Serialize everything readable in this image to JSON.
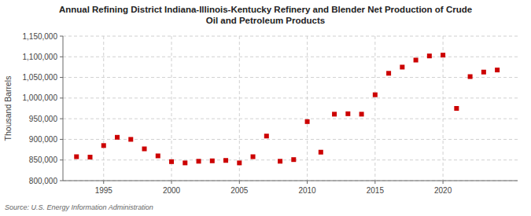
{
  "chart_data": {
    "type": "scatter",
    "title": "Annual Refining District Indiana-Illinois-Kentucky Refinery and Blender Net Production of Crude\nOil and Petroleum Products",
    "ylabel": "Thousand Barrels",
    "source": "Source: U.S. Energy Information Administration",
    "x": [
      1993,
      1994,
      1995,
      1996,
      1997,
      1998,
      1999,
      2000,
      2001,
      2002,
      2003,
      2004,
      2005,
      2006,
      2007,
      2008,
      2009,
      2010,
      2011,
      2012,
      2013,
      2014,
      2015,
      2016,
      2017,
      2018,
      2019,
      2020,
      2021,
      2022,
      2023,
      2024
    ],
    "values": [
      858000,
      857000,
      885000,
      905000,
      900000,
      877000,
      860000,
      846000,
      843000,
      847000,
      848000,
      849000,
      843000,
      858000,
      908000,
      847000,
      851000,
      943000,
      869000,
      961000,
      962000,
      961000,
      1008000,
      1060000,
      1075000,
      1092000,
      1102000,
      1104000,
      975000,
      1052000,
      1063000,
      1068000
    ],
    "color": "#cc0000",
    "marker": "square",
    "xlim": [
      1992.0,
      2025.5
    ],
    "xticks": [
      1995,
      2000,
      2005,
      2010,
      2015,
      2020
    ],
    "ylim": [
      800000,
      1150000
    ],
    "yticks": [
      {
        "value": 800000,
        "label": "800,000"
      },
      {
        "value": 850000,
        "label": "850,000"
      },
      {
        "value": 900000,
        "label": "900,000"
      },
      {
        "value": 950000,
        "label": "950,000"
      },
      {
        "value": 1000000,
        "label": "1,000,000"
      },
      {
        "value": 1050000,
        "label": "1,050,000"
      },
      {
        "value": 1100000,
        "label": "1,100,000"
      },
      {
        "value": 1150000,
        "label": "1,150,000"
      }
    ],
    "grid": true
  }
}
